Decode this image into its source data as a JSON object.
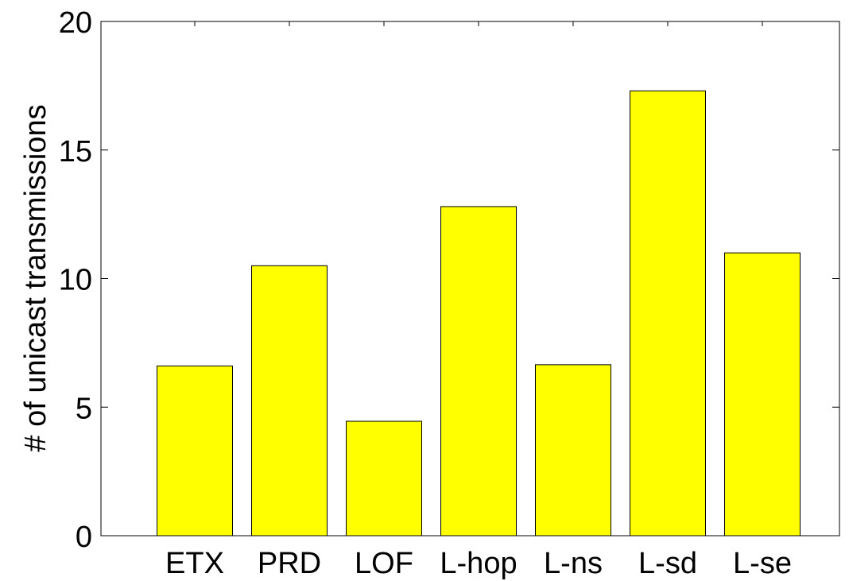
{
  "chart_data": {
    "type": "bar",
    "categories": [
      "ETX",
      "PRD",
      "LOF",
      "L-hop",
      "L-ns",
      "L-sd",
      "L-se"
    ],
    "values": [
      6.6,
      10.5,
      4.45,
      12.8,
      6.65,
      17.3,
      11.0
    ],
    "title": "",
    "xlabel": "",
    "ylabel": "# of unicast transmissions",
    "ylim": [
      0,
      20
    ],
    "yticks": [
      0,
      5,
      10,
      15,
      20
    ],
    "grid": false,
    "legend": "none",
    "colors": {
      "bar_fill": "#ffff00",
      "bar_edge": "#000000",
      "axis": "#000000"
    }
  }
}
